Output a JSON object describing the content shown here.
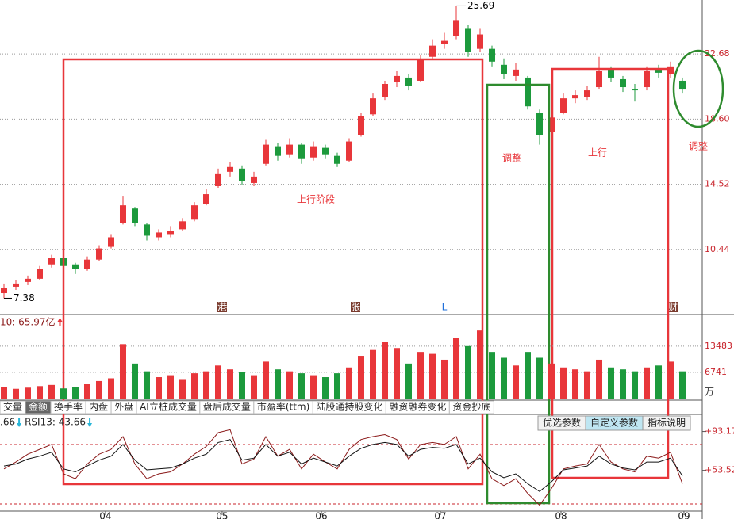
{
  "chart_data": [
    {
      "type": "candlestick",
      "xlim": [
        -0.333,
        58.333
      ],
      "ylim": [
        6.46,
        26.06
      ],
      "yticks": [
        22.68,
        {
          "value": 18.6,
          "label": "18.60"
        },
        14.52,
        10.44
      ],
      "grid": true,
      "up_color": "#e8363a",
      "down_color": "#1c9a3c",
      "open": [
        7.7,
        8.1,
        8.4,
        8.6,
        9.5,
        9.9,
        9.5,
        9.2,
        9.8,
        10.6,
        12.1,
        13.0,
        12.0,
        11.2,
        11.4,
        11.7,
        12.3,
        13.3,
        14.4,
        15.3,
        15.5,
        14.6,
        15.8,
        16.9,
        16.4,
        17.0,
        16.2,
        16.8,
        16.3,
        16.0,
        17.6,
        18.9,
        20.0,
        20.9,
        21.2,
        21.0,
        22.5,
        23.3,
        23.8,
        24.3,
        23.0,
        23.0,
        22.0,
        21.3,
        21.2,
        19.0,
        17.8,
        19.0,
        19.9,
        20.0,
        20.6,
        21.7,
        21.1,
        20.5,
        20.6,
        21.7,
        21.4,
        21.0
      ],
      "high": [
        8.3,
        8.5,
        8.8,
        9.4,
        10.1,
        10.0,
        9.6,
        10.0,
        10.7,
        11.4,
        13.8,
        13.1,
        12.1,
        11.7,
        11.9,
        12.4,
        13.4,
        14.2,
        15.5,
        15.9,
        15.7,
        15.3,
        17.3,
        17.1,
        17.4,
        17.1,
        17.2,
        17.0,
        16.5,
        17.4,
        19.0,
        20.2,
        21.0,
        21.6,
        21.4,
        22.6,
        23.6,
        24.0,
        25.69,
        24.5,
        24.3,
        23.2,
        22.4,
        22.1,
        21.3,
        19.2,
        19.0,
        20.2,
        20.4,
        20.7,
        22.5,
        21.9,
        21.3,
        20.8,
        21.9,
        22.0,
        22.2,
        21.2
      ],
      "low": [
        7.38,
        7.9,
        8.2,
        8.5,
        9.3,
        9.1,
        8.9,
        9.1,
        9.7,
        10.5,
        12.0,
        11.9,
        11.0,
        11.0,
        11.2,
        11.6,
        12.2,
        13.2,
        14.3,
        15.0,
        14.5,
        14.4,
        15.7,
        16.0,
        16.2,
        15.8,
        16.0,
        16.1,
        15.6,
        15.9,
        17.5,
        18.8,
        19.8,
        20.6,
        20.4,
        20.9,
        22.3,
        23.0,
        23.6,
        22.5,
        22.8,
        21.9,
        21.1,
        21.0,
        19.2,
        17.0,
        17.6,
        18.9,
        19.6,
        19.8,
        20.5,
        20.9,
        20.3,
        19.7,
        20.4,
        21.2,
        21.2,
        20.2
      ],
      "close": [
        8.0,
        8.3,
        8.6,
        9.2,
        9.9,
        9.4,
        9.2,
        9.8,
        10.5,
        11.2,
        13.2,
        12.1,
        11.3,
        11.5,
        11.6,
        12.2,
        13.2,
        13.9,
        15.2,
        15.6,
        14.7,
        15.0,
        17.0,
        16.3,
        17.0,
        16.1,
        16.9,
        16.4,
        15.8,
        17.2,
        18.8,
        19.9,
        20.8,
        21.3,
        20.7,
        22.3,
        23.2,
        23.5,
        24.8,
        22.8,
        23.9,
        22.2,
        21.4,
        21.7,
        19.4,
        17.6,
        18.7,
        19.9,
        20.1,
        20.4,
        21.6,
        21.2,
        20.6,
        20.4,
        21.6,
        21.5,
        21.9,
        20.5
      ],
      "markers": [
        "港",
        "张",
        "L",
        "财"
      ],
      "annotations": [
        "上行阶段",
        "调整",
        "上行",
        "调整"
      ]
    },
    {
      "type": "bar",
      "title": "10: 65.97亿",
      "unit": "万",
      "ylim": [
        0,
        21000
      ],
      "yticks": [
        13483,
        6741
      ],
      "values": [
        3000,
        2500,
        2800,
        3200,
        3500,
        2600,
        3000,
        3800,
        4500,
        5200,
        14000,
        9000,
        7000,
        5500,
        6000,
        5000,
        6500,
        7000,
        8500,
        7500,
        6800,
        6000,
        9500,
        7500,
        7000,
        6500,
        6000,
        5500,
        6500,
        8000,
        11000,
        12500,
        14500,
        13000,
        9000,
        12000,
        11500,
        10000,
        15500,
        13500,
        17500,
        12000,
        10500,
        8500,
        12000,
        10500,
        9000,
        8000,
        7500,
        7000,
        10000,
        8000,
        7500,
        7000,
        8000,
        8500,
        9500,
        7000
      ],
      "tabs": [
        "交量",
        "金额",
        "换手率",
        "内盘",
        "外盘",
        "AI立桩成交量",
        "盘后成交量",
        "市盈率(ttm)",
        "陆股通持股变化",
        "融资融券变化",
        "资金抄底"
      ]
    },
    {
      "type": "line",
      "title": [
        ".66",
        "RSI13: 43.66"
      ],
      "xlim": [
        -0.333,
        58.333
      ],
      "ylim": [
        12,
        109
      ],
      "yticks": [
        {
          "value": 93.17,
          "label": "+93.17"
        },
        {
          "value": 53.52,
          "label": "+53.52"
        }
      ],
      "xticks": [
        {
          "value": 8.53,
          "label": "04"
        },
        {
          "value": 18.33,
          "label": "05"
        },
        {
          "value": 26.67,
          "label": "06"
        },
        {
          "value": 36.67,
          "label": "07"
        },
        {
          "value": 46.8,
          "label": "08"
        },
        {
          "value": 57.13,
          "label": "09"
        }
      ],
      "buttons": [
        "优选参数",
        "自定义参数",
        "指标说明"
      ],
      "series": [
        {
          "color": "#8b1a1a",
          "values": [
            55,
            62,
            70,
            75,
            80,
            50,
            45,
            60,
            70,
            75,
            88,
            60,
            45,
            50,
            52,
            60,
            70,
            78,
            92,
            95,
            60,
            65,
            88,
            68,
            75,
            55,
            70,
            62,
            55,
            75,
            85,
            88,
            90,
            85,
            65,
            80,
            82,
            80,
            88,
            55,
            70,
            45,
            38,
            45,
            30,
            18,
            35,
            55,
            58,
            60,
            80,
            62,
            55,
            52,
            68,
            66,
            72,
            40
          ]
        },
        {
          "color": "#111111",
          "values": [
            58,
            60,
            65,
            68,
            72,
            55,
            52,
            58,
            64,
            68,
            80,
            64,
            54,
            55,
            56,
            60,
            66,
            70,
            82,
            85,
            64,
            66,
            80,
            68,
            72,
            60,
            66,
            62,
            58,
            68,
            76,
            80,
            82,
            80,
            68,
            75,
            77,
            76,
            80,
            60,
            66,
            52,
            46,
            50,
            40,
            32,
            42,
            54,
            56,
            58,
            68,
            60,
            56,
            54,
            62,
            62,
            66,
            48
          ]
        }
      ]
    }
  ]
}
